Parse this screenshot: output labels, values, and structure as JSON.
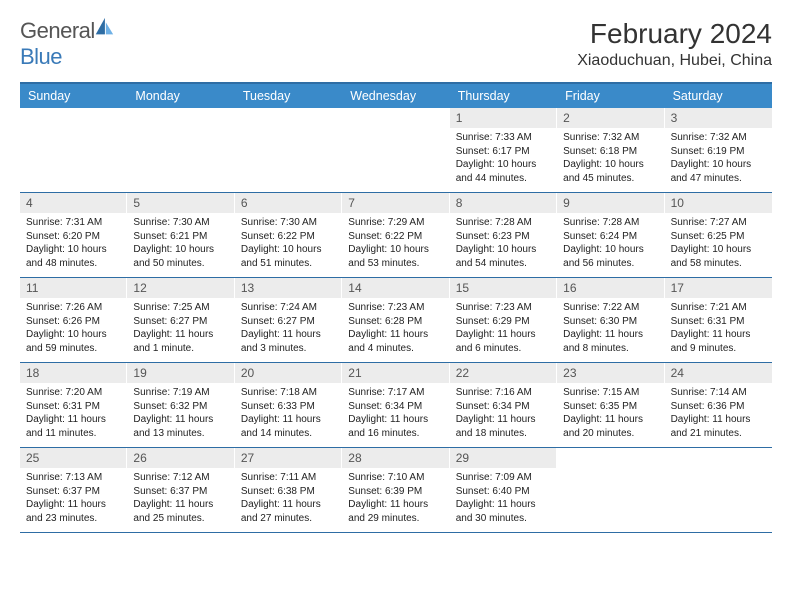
{
  "brand": {
    "text1": "General",
    "text2": "Blue"
  },
  "title": "February 2024",
  "location": "Xiaoduchuan, Hubei, China",
  "colors": {
    "header_bg": "#3a8ac9",
    "border": "#2e6da4",
    "daynum_bg": "#ececec",
    "text": "#333333"
  },
  "day_names": [
    "Sunday",
    "Monday",
    "Tuesday",
    "Wednesday",
    "Thursday",
    "Friday",
    "Saturday"
  ],
  "weeks": [
    [
      null,
      null,
      null,
      null,
      {
        "n": "1",
        "sr": "7:33 AM",
        "ss": "6:17 PM",
        "dl": "10 hours and 44 minutes."
      },
      {
        "n": "2",
        "sr": "7:32 AM",
        "ss": "6:18 PM",
        "dl": "10 hours and 45 minutes."
      },
      {
        "n": "3",
        "sr": "7:32 AM",
        "ss": "6:19 PM",
        "dl": "10 hours and 47 minutes."
      }
    ],
    [
      {
        "n": "4",
        "sr": "7:31 AM",
        "ss": "6:20 PM",
        "dl": "10 hours and 48 minutes."
      },
      {
        "n": "5",
        "sr": "7:30 AM",
        "ss": "6:21 PM",
        "dl": "10 hours and 50 minutes."
      },
      {
        "n": "6",
        "sr": "7:30 AM",
        "ss": "6:22 PM",
        "dl": "10 hours and 51 minutes."
      },
      {
        "n": "7",
        "sr": "7:29 AM",
        "ss": "6:22 PM",
        "dl": "10 hours and 53 minutes."
      },
      {
        "n": "8",
        "sr": "7:28 AM",
        "ss": "6:23 PM",
        "dl": "10 hours and 54 minutes."
      },
      {
        "n": "9",
        "sr": "7:28 AM",
        "ss": "6:24 PM",
        "dl": "10 hours and 56 minutes."
      },
      {
        "n": "10",
        "sr": "7:27 AM",
        "ss": "6:25 PM",
        "dl": "10 hours and 58 minutes."
      }
    ],
    [
      {
        "n": "11",
        "sr": "7:26 AM",
        "ss": "6:26 PM",
        "dl": "10 hours and 59 minutes."
      },
      {
        "n": "12",
        "sr": "7:25 AM",
        "ss": "6:27 PM",
        "dl": "11 hours and 1 minute."
      },
      {
        "n": "13",
        "sr": "7:24 AM",
        "ss": "6:27 PM",
        "dl": "11 hours and 3 minutes."
      },
      {
        "n": "14",
        "sr": "7:23 AM",
        "ss": "6:28 PM",
        "dl": "11 hours and 4 minutes."
      },
      {
        "n": "15",
        "sr": "7:23 AM",
        "ss": "6:29 PM",
        "dl": "11 hours and 6 minutes."
      },
      {
        "n": "16",
        "sr": "7:22 AM",
        "ss": "6:30 PM",
        "dl": "11 hours and 8 minutes."
      },
      {
        "n": "17",
        "sr": "7:21 AM",
        "ss": "6:31 PM",
        "dl": "11 hours and 9 minutes."
      }
    ],
    [
      {
        "n": "18",
        "sr": "7:20 AM",
        "ss": "6:31 PM",
        "dl": "11 hours and 11 minutes."
      },
      {
        "n": "19",
        "sr": "7:19 AM",
        "ss": "6:32 PM",
        "dl": "11 hours and 13 minutes."
      },
      {
        "n": "20",
        "sr": "7:18 AM",
        "ss": "6:33 PM",
        "dl": "11 hours and 14 minutes."
      },
      {
        "n": "21",
        "sr": "7:17 AM",
        "ss": "6:34 PM",
        "dl": "11 hours and 16 minutes."
      },
      {
        "n": "22",
        "sr": "7:16 AM",
        "ss": "6:34 PM",
        "dl": "11 hours and 18 minutes."
      },
      {
        "n": "23",
        "sr": "7:15 AM",
        "ss": "6:35 PM",
        "dl": "11 hours and 20 minutes."
      },
      {
        "n": "24",
        "sr": "7:14 AM",
        "ss": "6:36 PM",
        "dl": "11 hours and 21 minutes."
      }
    ],
    [
      {
        "n": "25",
        "sr": "7:13 AM",
        "ss": "6:37 PM",
        "dl": "11 hours and 23 minutes."
      },
      {
        "n": "26",
        "sr": "7:12 AM",
        "ss": "6:37 PM",
        "dl": "11 hours and 25 minutes."
      },
      {
        "n": "27",
        "sr": "7:11 AM",
        "ss": "6:38 PM",
        "dl": "11 hours and 27 minutes."
      },
      {
        "n": "28",
        "sr": "7:10 AM",
        "ss": "6:39 PM",
        "dl": "11 hours and 29 minutes."
      },
      {
        "n": "29",
        "sr": "7:09 AM",
        "ss": "6:40 PM",
        "dl": "11 hours and 30 minutes."
      },
      null,
      null
    ]
  ],
  "labels": {
    "sunrise": "Sunrise: ",
    "sunset": "Sunset: ",
    "daylight": "Daylight: "
  }
}
